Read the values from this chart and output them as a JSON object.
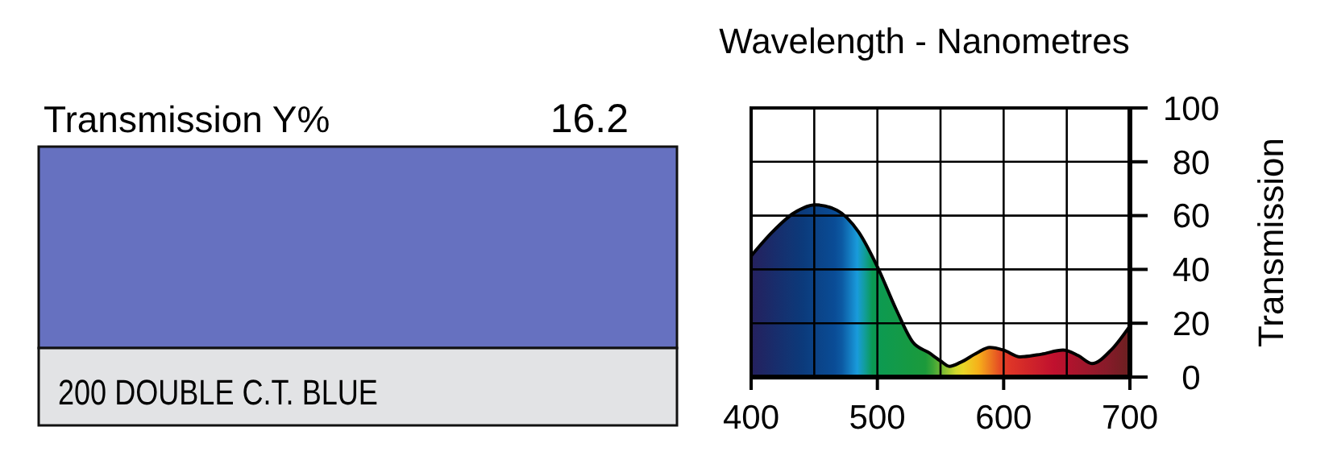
{
  "chart_data": [
    {
      "type": "other",
      "title": "Transmission Y%",
      "color": "#6671c0",
      "annotations": [
        "16.2",
        "200 DOUBLE C.T. BLUE"
      ]
    },
    {
      "type": "area",
      "title": "Wavelength - Nanometres",
      "ylabel": "Transmission",
      "xlim": [
        400,
        700
      ],
      "ylim": [
        0,
        100
      ],
      "xticks": [
        400,
        500,
        600,
        700
      ],
      "yticks": [
        0,
        20,
        40,
        60,
        80,
        100
      ],
      "grid": true,
      "series": [
        {
          "x": [
            400,
            417,
            434,
            451,
            468,
            485,
            500,
            515,
            528,
            541,
            550,
            557,
            566,
            579,
            589,
            600,
            613,
            630,
            647,
            659,
            670,
            685,
            700
          ],
          "values": [
            45,
            54,
            61,
            64,
            62,
            54,
            41,
            25,
            13,
            9,
            6,
            4,
            5.5,
            9,
            11,
            10,
            7.5,
            8.5,
            10,
            8,
            5,
            10,
            19
          ]
        }
      ]
    }
  ]
}
